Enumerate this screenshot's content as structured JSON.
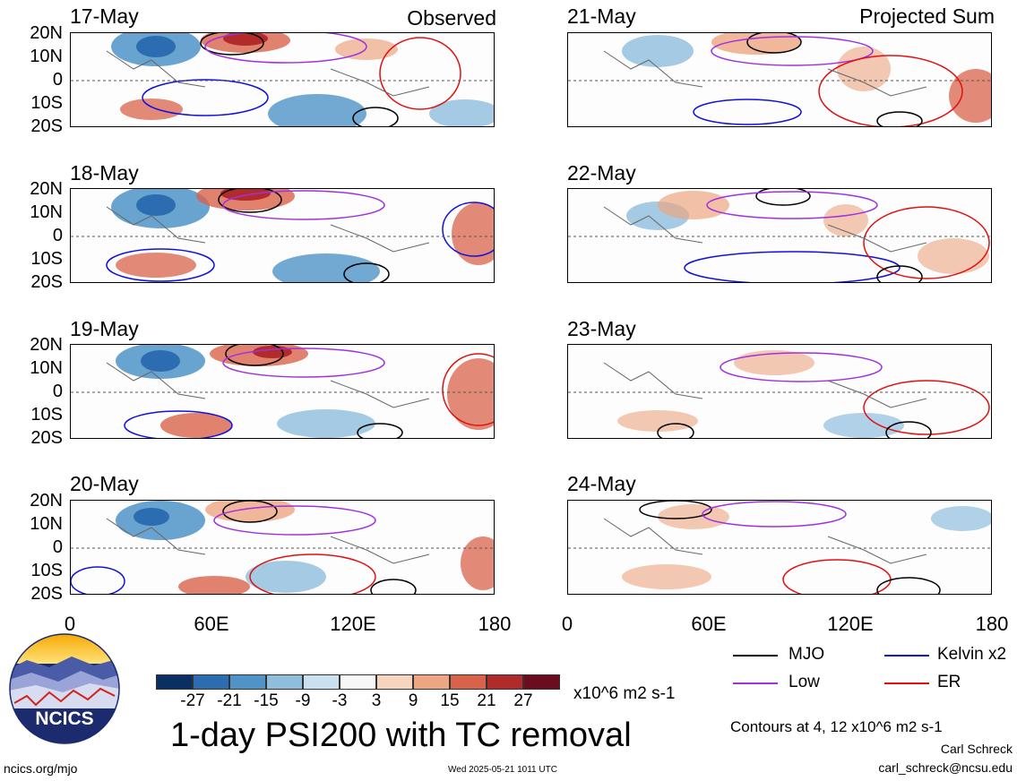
{
  "panels_left": {
    "corner_label": "Observed",
    "dates": [
      "17-May",
      "18-May",
      "19-May",
      "20-May"
    ]
  },
  "panels_right": {
    "corner_label": "Projected Sum",
    "dates": [
      "21-May",
      "22-May",
      "23-May",
      "24-May"
    ]
  },
  "lat_labels": [
    "20N",
    "10N",
    "0",
    "10S",
    "20S"
  ],
  "lon_labels": [
    "0",
    "60E",
    "120E",
    "180"
  ],
  "colorbar": {
    "colors": [
      "#0a2f63",
      "#2c6cb0",
      "#4f93c7",
      "#8fbedd",
      "#c9e0ef",
      "#f7f7f7",
      "#f7d4bd",
      "#eda582",
      "#d8634a",
      "#b22b2b",
      "#6b0d1f"
    ],
    "tick_labels": [
      "-27",
      "-21",
      "-15",
      "-9",
      "-3",
      "3",
      "9",
      "15",
      "21",
      "27"
    ],
    "units": "x10^6 m2 s-1"
  },
  "title": "1-day PSI200 with TC removal",
  "legend": {
    "items": [
      {
        "label": "MJO",
        "color": "#000000"
      },
      {
        "label": "Kelvin x2",
        "color": "#1010e0"
      },
      {
        "label": "Low",
        "color": "#a030e0"
      },
      {
        "label": "ER",
        "color": "#e01010"
      }
    ],
    "contour_note": "Contours at 4, 12 x10^6 m2 s-1"
  },
  "logo": {
    "text": "NCICS"
  },
  "footer": {
    "website": "ncics.org/mjo",
    "timestamp": "Wed 2025-05-21 1011 UTC",
    "author": "Carl Schreck",
    "email": "carl_schreck@ncsu.edu"
  }
}
